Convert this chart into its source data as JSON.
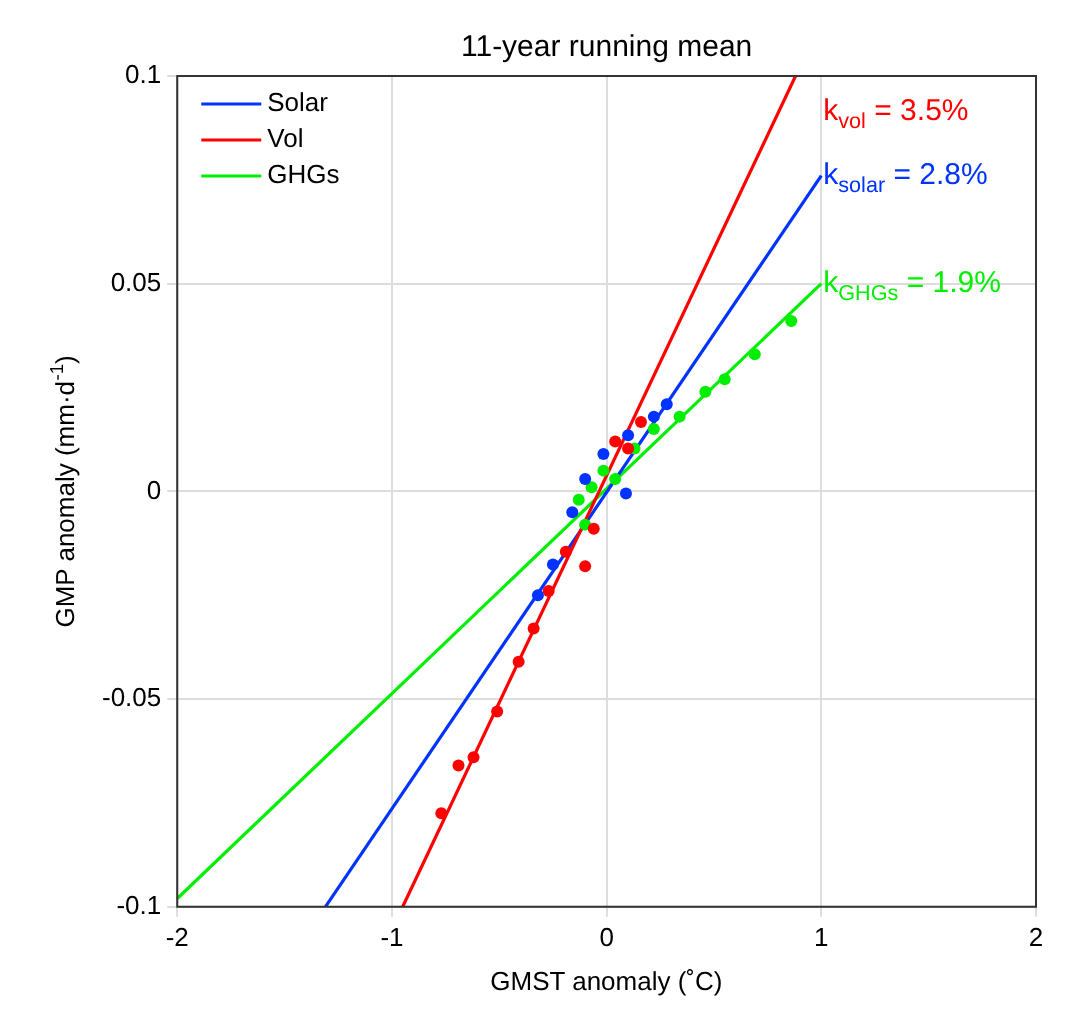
{
  "chart_data": {
    "type": "scatter",
    "title": "11-year running mean",
    "xlabel": "GMST anomaly (˚C)",
    "ylabel": "GMP anomaly (mm·d$^{-1}$)",
    "xlim": [
      -2,
      2
    ],
    "xticks": [
      -2,
      -1,
      0,
      1,
      2
    ],
    "ylim": [
      -0.1,
      0.1
    ],
    "yticks": [
      -0.1,
      -0.05,
      0,
      0.05,
      0.1
    ],
    "grid": true,
    "legend": "top left",
    "series": [
      {
        "name": "Solar",
        "marker": "circle",
        "color": "#0033ff",
        "x": [
          -0.32,
          -0.25,
          -0.16,
          -0.1,
          -0.015,
          0.09,
          0.1,
          0.22,
          0.28
        ],
        "values": [
          -0.025,
          -0.0176,
          -0.005,
          0.003,
          0.009,
          -0.0005,
          0.0135,
          0.018,
          0.021
        ]
      },
      {
        "name": "Vol",
        "marker": "circle",
        "color": "#ff0000",
        "x": [
          -0.77,
          -0.69,
          -0.62,
          -0.51,
          -0.41,
          -0.34,
          -0.27,
          -0.19,
          -0.1,
          -0.06,
          0.04,
          0.1,
          0.16
        ],
        "values": [
          -0.0775,
          -0.066,
          -0.064,
          -0.053,
          -0.041,
          -0.033,
          -0.024,
          -0.0145,
          -0.018,
          -0.009,
          0.012,
          0.0103,
          0.0167
        ]
      },
      {
        "name": "GHGs",
        "marker": "circle",
        "color": "#00ee00",
        "x": [
          -0.13,
          -0.1,
          -0.07,
          -0.015,
          0.04,
          0.13,
          0.22,
          0.34,
          0.46,
          0.55,
          0.69,
          0.86
        ],
        "values": [
          -0.002,
          -0.008,
          0.001,
          0.005,
          0.003,
          0.0103,
          0.015,
          0.018,
          0.024,
          0.027,
          0.033,
          0.041
        ]
      },
      {
        "type": "line",
        "marker": "none",
        "color": "#ff0000",
        "x": [
          -0.95,
          0.88
        ],
        "values": [
          -0.1,
          0.1
        ]
      },
      {
        "type": "line",
        "marker": "none",
        "color": "#0033ff",
        "x": [
          -1.31,
          1
        ],
        "values": [
          -0.1,
          0.076
        ]
      },
      {
        "type": "line",
        "marker": "none",
        "color": "#00ee00",
        "x": [
          -2,
          1
        ],
        "values": [
          -0.098,
          0.05
        ]
      }
    ],
    "annotations": [
      "k$_{vol}$ = 3.5%",
      "k$_{solar}$ = 2.8%",
      "k$_{GHGs}$ = 1.9%"
    ]
  }
}
